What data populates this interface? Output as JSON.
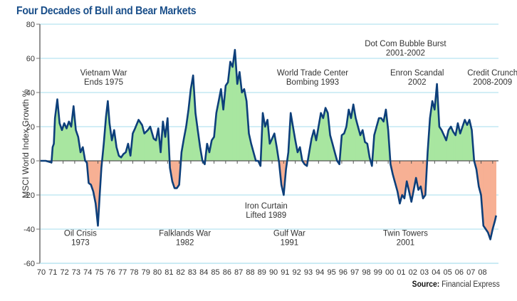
{
  "chart_data": {
    "type": "area",
    "title": "Four Decades of Bull and Bear Markets",
    "xlabel": "",
    "ylabel": "MSCI World Index Growth %",
    "ylim": [
      -60,
      80
    ],
    "yticks": [
      80,
      60,
      40,
      20,
      0,
      -20,
      -40,
      -60
    ],
    "ytick_labels": [
      "80",
      "60",
      "40",
      "20",
      "0",
      "-20",
      "-40",
      "-60"
    ],
    "xlim": [
      1970,
      2009.4
    ],
    "xtick_labels": [
      "70",
      "71",
      "72",
      "73",
      "74",
      "75",
      "76",
      "77",
      "78",
      "79",
      "80",
      "81",
      "82",
      "83",
      "84",
      "85",
      "86",
      "87",
      "88",
      "89",
      "90",
      "91",
      "92",
      "93",
      "94",
      "95",
      "96",
      "97",
      "98",
      "99",
      "00",
      "01",
      "02",
      "03",
      "04",
      "05",
      "06",
      "07",
      "08"
    ],
    "grid": true,
    "colors": {
      "line": "#0d3f7a",
      "positive_fill": "#a8e6a0",
      "negative_fill": "#f7b094",
      "grid": "#b7e3f0",
      "axis": "#555555",
      "title": "#1a4f8a"
    },
    "series": [
      {
        "name": "MSCI World Index Growth %",
        "x": [
          1970.0,
          1970.5,
          1971.0,
          1971.1,
          1971.2,
          1971.3,
          1971.5,
          1971.7,
          1971.9,
          1972.1,
          1972.3,
          1972.5,
          1972.7,
          1972.9,
          1973.1,
          1973.3,
          1973.5,
          1973.7,
          1973.9,
          1974.05,
          1974.2,
          1974.4,
          1974.6,
          1974.8,
          1975.0,
          1975.15,
          1975.3,
          1975.5,
          1975.7,
          1975.85,
          1976.0,
          1976.2,
          1976.4,
          1976.6,
          1976.8,
          1977.0,
          1977.2,
          1977.4,
          1977.6,
          1977.8,
          1978.0,
          1978.2,
          1978.5,
          1978.8,
          1979.0,
          1979.3,
          1979.5,
          1979.8,
          1980.0,
          1980.2,
          1980.4,
          1980.6,
          1980.8,
          1981.0,
          1981.2,
          1981.4,
          1981.6,
          1981.8,
          1982.0,
          1982.2,
          1982.4,
          1982.6,
          1982.8,
          1983.0,
          1983.2,
          1983.4,
          1983.6,
          1983.8,
          1984.0,
          1984.2,
          1984.4,
          1984.6,
          1984.8,
          1985.0,
          1985.2,
          1985.4,
          1985.6,
          1985.8,
          1986.0,
          1986.2,
          1986.4,
          1986.6,
          1986.8,
          1987.0,
          1987.2,
          1987.4,
          1987.6,
          1987.8,
          1988.0,
          1988.2,
          1988.4,
          1988.6,
          1988.8,
          1989.0,
          1989.2,
          1989.4,
          1989.6,
          1989.8,
          1990.0,
          1990.2,
          1990.4,
          1990.6,
          1990.8,
          1991.0,
          1991.2,
          1991.4,
          1991.6,
          1991.8,
          1992.0,
          1992.2,
          1992.4,
          1992.6,
          1992.8,
          1993.0,
          1993.2,
          1993.4,
          1993.6,
          1993.8,
          1994.0,
          1994.2,
          1994.4,
          1994.6,
          1994.8,
          1995.0,
          1995.2,
          1995.4,
          1995.6,
          1995.8,
          1996.0,
          1996.2,
          1996.4,
          1996.6,
          1996.8,
          1997.0,
          1997.2,
          1997.4,
          1997.6,
          1997.8,
          1998.0,
          1998.2,
          1998.4,
          1998.6,
          1998.8,
          1999.0,
          1999.2,
          1999.4,
          1999.6,
          1999.8,
          2000.0,
          2000.2,
          2000.4,
          2000.6,
          2000.8,
          2001.0,
          2001.2,
          2001.4,
          2001.6,
          2001.8,
          2002.0,
          2002.2,
          2002.4,
          2002.6,
          2002.8,
          2003.0,
          2003.2,
          2003.4,
          2003.6,
          2003.8,
          2004.0,
          2004.2,
          2004.4,
          2004.6,
          2004.8,
          2005.0,
          2005.2,
          2005.4,
          2005.6,
          2005.8,
          2006.0,
          2006.2,
          2006.4,
          2006.6,
          2006.8,
          2007.0,
          2007.2,
          2007.4,
          2007.6,
          2007.8,
          2008.0,
          2008.2,
          2008.4,
          2008.6,
          2008.8,
          2009.0,
          2009.2,
          2009.3
        ],
        "y": [
          0,
          0,
          -1,
          8,
          10,
          25,
          36,
          22,
          18,
          22,
          19,
          23,
          20,
          32,
          18,
          14,
          5,
          8,
          0,
          -1,
          -13,
          -14,
          -18,
          -25,
          -38,
          -20,
          -4,
          10,
          26,
          35,
          22,
          12,
          18,
          8,
          3,
          2,
          4,
          5,
          10,
          3,
          16,
          19,
          24,
          21,
          16,
          18,
          20,
          13,
          12,
          19,
          5,
          23,
          14,
          25,
          -4,
          -12,
          -16,
          -16,
          -14,
          5,
          13,
          20,
          30,
          42,
          50,
          28,
          18,
          8,
          0,
          -2,
          10,
          5,
          12,
          14,
          28,
          35,
          42,
          30,
          44,
          46,
          58,
          55,
          65,
          45,
          52,
          40,
          42,
          35,
          16,
          10,
          5,
          0,
          0,
          -3,
          28,
          20,
          24,
          10,
          13,
          16,
          8,
          -1,
          -14,
          -20,
          -5,
          5,
          28,
          20,
          12,
          5,
          8,
          0,
          -2,
          -3,
          5,
          13,
          18,
          12,
          20,
          28,
          25,
          31,
          28,
          15,
          10,
          5,
          0,
          -2,
          15,
          16,
          20,
          30,
          25,
          33,
          25,
          20,
          15,
          18,
          11,
          10,
          2,
          -3,
          15,
          20,
          25,
          25,
          23,
          30,
          18,
          -2,
          -8,
          -13,
          -18,
          -25,
          -20,
          -22,
          -12,
          -18,
          -24,
          -17,
          -10,
          -17,
          -15,
          -22,
          -20,
          5,
          25,
          35,
          30,
          45,
          20,
          18,
          15,
          12,
          18,
          20,
          17,
          15,
          22,
          16,
          20,
          24,
          21,
          24,
          18,
          0,
          -5,
          -15,
          -20,
          -38,
          -40,
          -42,
          -46,
          -40,
          -35,
          -32
        ],
        "note": "Approximate monthly-rolling growth read from chart"
      }
    ],
    "annotations": [
      {
        "lines": [
          "Vietnam War",
          "Ends 1975"
        ],
        "x": 1975,
        "y": 50
      },
      {
        "lines": [
          "Oil Crisis",
          "1973"
        ],
        "x": 1973,
        "y": -44
      },
      {
        "lines": [
          "Falklands War",
          "1982"
        ],
        "x": 1982,
        "y": -44
      },
      {
        "lines": [
          "Iron Curtain",
          "Lifted 1989"
        ],
        "x": 1989,
        "y": -28
      },
      {
        "lines": [
          "Gulf War",
          "1991"
        ],
        "x": 1991,
        "y": -44
      },
      {
        "lines": [
          "World Trade Center",
          "Bombing 1993"
        ],
        "x": 1993,
        "y": 50
      },
      {
        "lines": [
          "Dot Com Bubble Burst",
          "2001-2002"
        ],
        "x": 2001,
        "y": 67
      },
      {
        "lines": [
          "Enron Scandal",
          "2002"
        ],
        "x": 2002,
        "y": 50
      },
      {
        "lines": [
          "Twin Towers",
          "2001"
        ],
        "x": 2001,
        "y": -44
      },
      {
        "lines": [
          "Credit Crunch",
          "2008-2009"
        ],
        "x": 2008.5,
        "y": 50
      }
    ],
    "source_label": "Source:",
    "source_value": " Financial Express"
  }
}
